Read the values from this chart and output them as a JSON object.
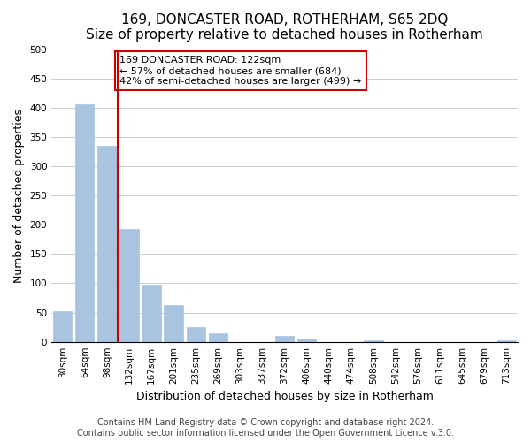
{
  "title": "169, DONCASTER ROAD, ROTHERHAM, S65 2DQ",
  "subtitle": "Size of property relative to detached houses in Rotherham",
  "xlabel": "Distribution of detached houses by size in Rotherham",
  "ylabel": "Number of detached properties",
  "bar_labels": [
    "30sqm",
    "64sqm",
    "98sqm",
    "132sqm",
    "167sqm",
    "201sqm",
    "235sqm",
    "269sqm",
    "303sqm",
    "337sqm",
    "372sqm",
    "406sqm",
    "440sqm",
    "474sqm",
    "508sqm",
    "542sqm",
    "576sqm",
    "611sqm",
    "645sqm",
    "679sqm",
    "713sqm"
  ],
  "bar_values": [
    53,
    406,
    335,
    193,
    97,
    63,
    25,
    15,
    0,
    0,
    10,
    5,
    0,
    0,
    2,
    0,
    0,
    0,
    0,
    0,
    2
  ],
  "bar_color": "#a8c4e0",
  "vline_index": 3,
  "vline_color": "#cc0000",
  "annotation_text": "169 DONCASTER ROAD: 122sqm\n← 57% of detached houses are smaller (684)\n42% of semi-detached houses are larger (499) →",
  "annotation_box_color": "#ffffff",
  "annotation_box_edge": "#cc0000",
  "ylim": [
    0,
    500
  ],
  "yticks": [
    0,
    50,
    100,
    150,
    200,
    250,
    300,
    350,
    400,
    450,
    500
  ],
  "footer1": "Contains HM Land Registry data © Crown copyright and database right 2024.",
  "footer2": "Contains public sector information licensed under the Open Government Licence v.3.0.",
  "title_fontsize": 11,
  "tick_fontsize": 7.5,
  "ylabel_fontsize": 9,
  "xlabel_fontsize": 9,
  "footer_fontsize": 7
}
